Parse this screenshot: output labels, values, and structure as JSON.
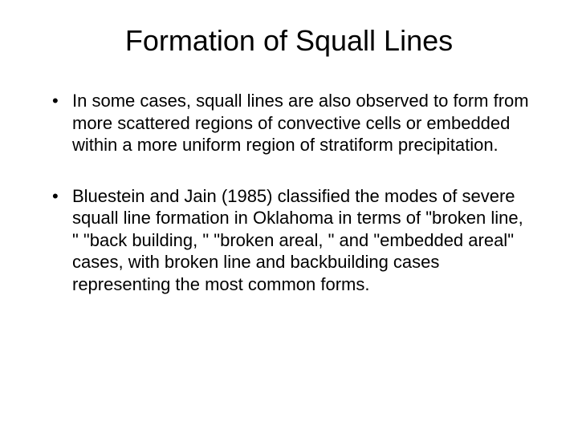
{
  "slide": {
    "title": "Formation of Squall Lines",
    "bullets": [
      "In some cases, squall lines are also observed to form from more scattered regions of convective cells or embedded within a more uniform region of stratiform precipitation.",
      "Bluestein and Jain (1985) classified the modes of severe squall line formation in Oklahoma in terms of \"broken line, \" \"back building, \" \"broken areal, \" and \"embedded areal\" cases, with broken line and backbuilding cases representing the most common forms."
    ]
  },
  "styling": {
    "background_color": "#ffffff",
    "text_color": "#000000",
    "title_fontsize": 36,
    "body_fontsize": 22,
    "font_family": "Arial"
  }
}
